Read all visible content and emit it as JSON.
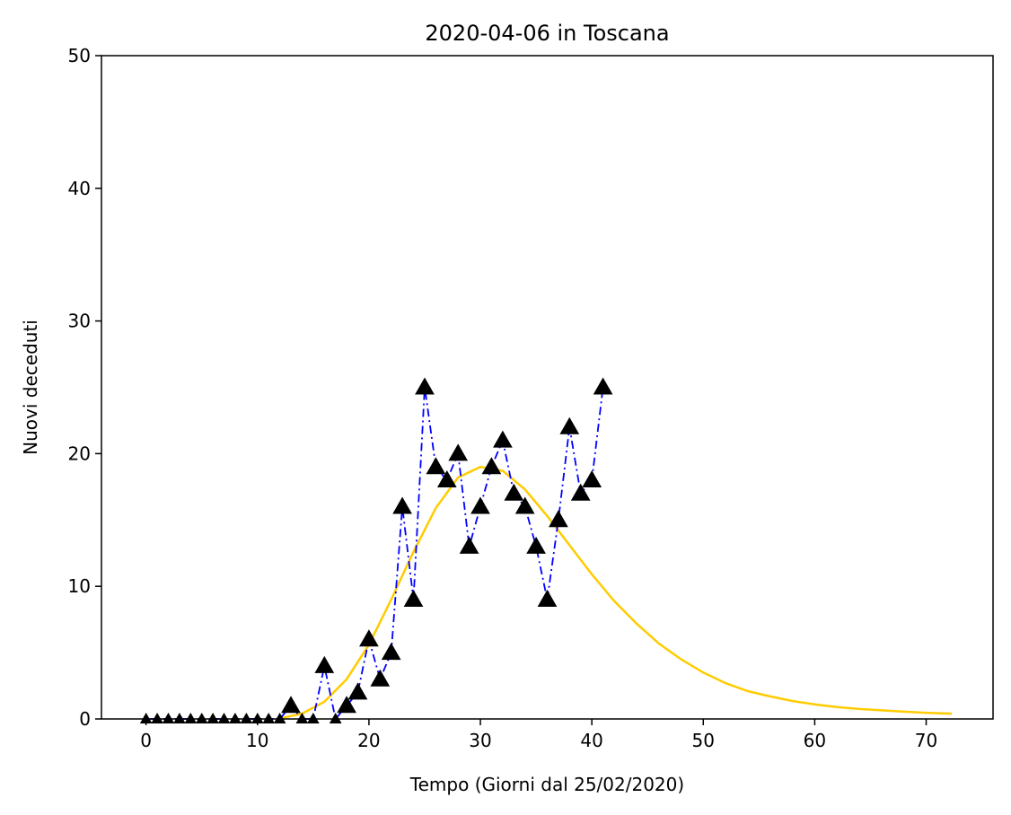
{
  "chart_data": {
    "type": "line",
    "title": "2020-04-06 in Toscana",
    "xlabel": "Tempo (Giorni dal 25/02/2020)",
    "ylabel": "Nuovi deceduti",
    "xlim": [
      -4,
      76
    ],
    "ylim": [
      0,
      50
    ],
    "xticks": [
      0,
      10,
      20,
      30,
      40,
      50,
      60,
      70
    ],
    "yticks": [
      0,
      10,
      20,
      30,
      40,
      50
    ],
    "grid": false,
    "legend": "none",
    "series": [
      {
        "style": "dash-dot line with triangle markers",
        "line_color": "#0000ff",
        "marker_color": "#000000",
        "x": [
          0,
          1,
          2,
          3,
          4,
          5,
          6,
          7,
          8,
          9,
          10,
          11,
          12,
          13,
          14,
          15,
          16,
          17,
          18,
          19,
          20,
          21,
          22,
          23,
          24,
          25,
          26,
          27,
          28,
          29,
          30,
          31,
          32,
          33,
          34,
          35,
          36,
          37,
          38,
          39,
          40,
          41
        ],
        "y": [
          0,
          0,
          0,
          0,
          0,
          0,
          0,
          0,
          0,
          0,
          0,
          0,
          0,
          1,
          0,
          0,
          4,
          0,
          1,
          2,
          6,
          3,
          5,
          16,
          9,
          25,
          19,
          18,
          20,
          13,
          16,
          19,
          21,
          17,
          16,
          13,
          9,
          15,
          22,
          17,
          18,
          25
        ]
      },
      {
        "style": "solid fitted curve",
        "color": "#ffcc00",
        "x": [
          12,
          14,
          16,
          18,
          20,
          22,
          24,
          26,
          28,
          30,
          32,
          34,
          36,
          38,
          40,
          42,
          44,
          46,
          48,
          50,
          52,
          54,
          56,
          58,
          60,
          62,
          64,
          66,
          68,
          70,
          72.3
        ],
        "y": [
          0.05,
          0.4,
          1.3,
          3.0,
          5.6,
          9.0,
          12.6,
          15.9,
          18.2,
          19.0,
          18.7,
          17.3,
          15.3,
          13.1,
          10.9,
          8.9,
          7.2,
          5.7,
          4.5,
          3.5,
          2.7,
          2.1,
          1.7,
          1.35,
          1.1,
          0.9,
          0.75,
          0.65,
          0.55,
          0.47,
          0.4
        ]
      }
    ]
  }
}
